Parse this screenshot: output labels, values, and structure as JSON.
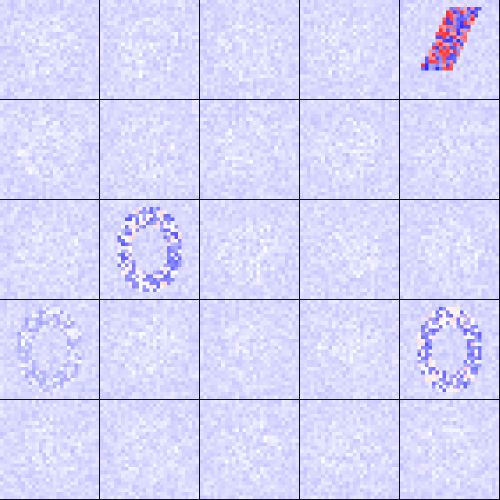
{
  "figure": {
    "kind": "heatmap-grid",
    "rows": 5,
    "cols": 5,
    "colormap": {
      "negative": "#2a2aff",
      "neutral": "#ffffff",
      "positive": "#ff2020",
      "background_tint": "#dcdcfb"
    },
    "tiles": [
      {
        "row": 0,
        "col": 0,
        "pattern": "faint-blob",
        "strength": "weak"
      },
      {
        "row": 0,
        "col": 1,
        "pattern": "faint-blob",
        "strength": "weak"
      },
      {
        "row": 0,
        "col": 2,
        "pattern": "faint-blob",
        "strength": "weak"
      },
      {
        "row": 0,
        "col": 3,
        "pattern": "faint-blob",
        "strength": "weak"
      },
      {
        "row": 0,
        "col": 4,
        "pattern": "diagonal-stroke",
        "strength": "strong"
      },
      {
        "row": 1,
        "col": 0,
        "pattern": "faint-blob",
        "strength": "weak"
      },
      {
        "row": 1,
        "col": 1,
        "pattern": "faint-blob",
        "strength": "weak"
      },
      {
        "row": 1,
        "col": 2,
        "pattern": "faint-blob",
        "strength": "weak"
      },
      {
        "row": 1,
        "col": 3,
        "pattern": "faint-blob",
        "strength": "weak"
      },
      {
        "row": 1,
        "col": 4,
        "pattern": "faint-blob",
        "strength": "weak"
      },
      {
        "row": 2,
        "col": 0,
        "pattern": "faint-blob",
        "strength": "weak"
      },
      {
        "row": 2,
        "col": 1,
        "pattern": "ring",
        "strength": "medium"
      },
      {
        "row": 2,
        "col": 2,
        "pattern": "faint-blob",
        "strength": "weak"
      },
      {
        "row": 2,
        "col": 3,
        "pattern": "faint-blob",
        "strength": "weak"
      },
      {
        "row": 2,
        "col": 4,
        "pattern": "faint-blob",
        "strength": "weak"
      },
      {
        "row": 3,
        "col": 0,
        "pattern": "faint-ring",
        "strength": "weak"
      },
      {
        "row": 3,
        "col": 1,
        "pattern": "faint-blob",
        "strength": "weak"
      },
      {
        "row": 3,
        "col": 2,
        "pattern": "faint-blob",
        "strength": "weak"
      },
      {
        "row": 3,
        "col": 3,
        "pattern": "faint-blob",
        "strength": "weak"
      },
      {
        "row": 3,
        "col": 4,
        "pattern": "ring",
        "strength": "medium"
      },
      {
        "row": 4,
        "col": 0,
        "pattern": "faint-blob",
        "strength": "weak"
      },
      {
        "row": 4,
        "col": 1,
        "pattern": "faint-blob",
        "strength": "weak"
      },
      {
        "row": 4,
        "col": 2,
        "pattern": "faint-blob",
        "strength": "weak"
      },
      {
        "row": 4,
        "col": 3,
        "pattern": "faint-blob",
        "strength": "weak"
      },
      {
        "row": 4,
        "col": 4,
        "pattern": "faint-blob",
        "strength": "weak"
      }
    ]
  }
}
